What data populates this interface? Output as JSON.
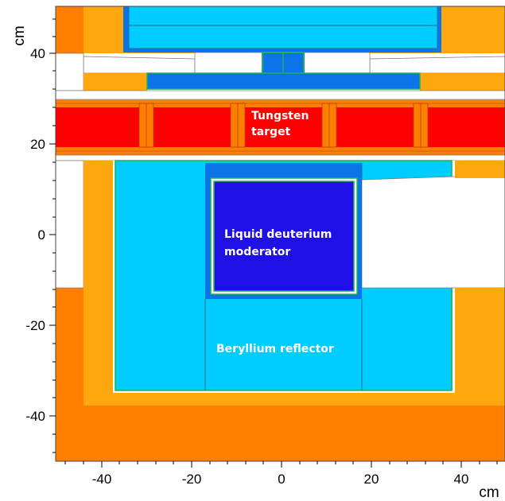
{
  "axes": {
    "y_unit": "cm",
    "x_unit": "cm",
    "y_ticks": [
      "40",
      "20",
      "0",
      "-20",
      "-40"
    ],
    "x_ticks": [
      "-40",
      "-20",
      "0",
      "20",
      "40"
    ]
  },
  "labels": {
    "target_line1": "Tungsten",
    "target_line2": "target",
    "moderator_line1": "Liquid deuterium",
    "moderator_line2": "moderator",
    "reflector": "Beryllium reflector"
  },
  "colors": {
    "dark_orange": "#ff7f00",
    "light_orange": "#ffa70f",
    "light_blue": "#00ccff",
    "mid_blue": "#0a74e8",
    "deep_blue": "#1f10e6",
    "red": "#ff0000",
    "green_outline": "#22b055"
  }
}
